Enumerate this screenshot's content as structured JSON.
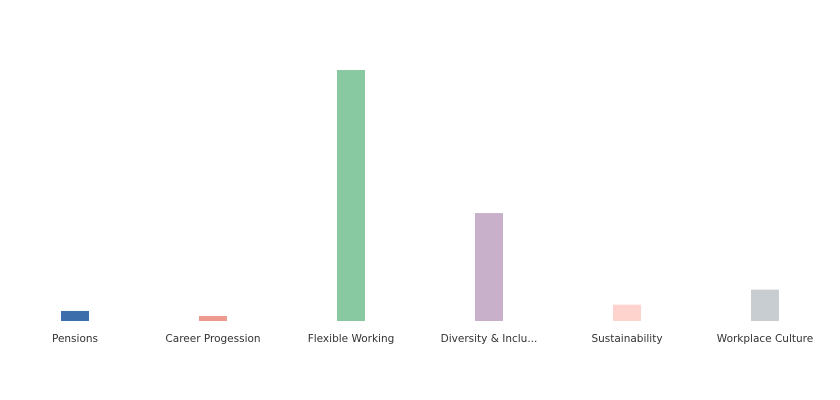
{
  "chart_data": {
    "type": "bar",
    "categories": [
      "Pensions",
      "Career Progession",
      "Flexible Working",
      "Diversity & Inclu...",
      "Sustainability",
      "Workplace Culture"
    ],
    "values": [
      4,
      2,
      100,
      43,
      6.5,
      12.5
    ],
    "colors": [
      "#3b6eab",
      "#ef9a8e",
      "#89c9a2",
      "#c8afca",
      "#fed3cd",
      "#c8cdd1"
    ],
    "ylim": [
      0,
      100
    ],
    "grid": false,
    "legend": "none",
    "title": "",
    "xlabel": "",
    "ylabel": ""
  }
}
